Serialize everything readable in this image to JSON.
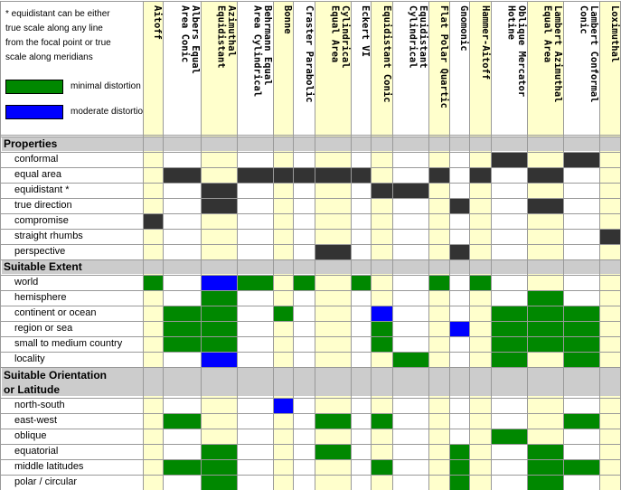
{
  "legend": {
    "note_lines": [
      "* equidistant can be either",
      "true scale along any line",
      "from the focal point or true",
      "scale along meridians"
    ],
    "items": [
      {
        "label": "minimal distortion",
        "color": "#008800"
      },
      {
        "label": "moderate distortion",
        "color": "#0000ff"
      }
    ]
  },
  "colors": {
    "property_mark": "#333333",
    "minimal": "#008800",
    "moderate": "#0000ff",
    "column_tint": "#ffffcc",
    "section_bg": "#cccccc"
  },
  "columns": [
    [
      "Aitoff"
    ],
    [
      "Albers Equal",
      "Area Conic"
    ],
    [
      "Azimuthal",
      "Equidistant"
    ],
    [
      "Behrmann Equal",
      "Area Cylindrical"
    ],
    [
      "Bonne"
    ],
    [
      "Craster Parabolic"
    ],
    [
      "Cylindrical",
      "Equal Area"
    ],
    [
      "Eckert VI"
    ],
    [
      "Equidistant Conic"
    ],
    [
      "Equidistant",
      "Cylindrical"
    ],
    [
      "Flat Polar Quartic"
    ],
    [
      "Gnomonic"
    ],
    [
      "Hammer-Aitoff"
    ],
    [
      "Oblique Mercator",
      "Hotine"
    ],
    [
      "Lambert Azimuthal",
      "Equal Area"
    ],
    [
      "Lambert Conformal",
      "Conic"
    ],
    [
      "Loximuthal"
    ]
  ],
  "sections": [
    {
      "title": "Properties",
      "rows": [
        {
          "label": "conformal",
          "marks": [
            0,
            0,
            0,
            0,
            0,
            0,
            0,
            0,
            0,
            0,
            0,
            0,
            0,
            1,
            0,
            1,
            0
          ]
        },
        {
          "label": "equal area",
          "marks": [
            0,
            1,
            0,
            1,
            1,
            1,
            1,
            1,
            0,
            0,
            1,
            0,
            1,
            0,
            1,
            0,
            0
          ]
        },
        {
          "label": "equidistant *",
          "marks": [
            0,
            0,
            1,
            0,
            0,
            0,
            0,
            0,
            1,
            1,
            0,
            0,
            0,
            0,
            0,
            0,
            0
          ]
        },
        {
          "label": "true direction",
          "marks": [
            0,
            0,
            1,
            0,
            0,
            0,
            0,
            0,
            0,
            0,
            0,
            1,
            0,
            0,
            1,
            0,
            0
          ]
        },
        {
          "label": "compromise",
          "marks": [
            1,
            0,
            0,
            0,
            0,
            0,
            0,
            0,
            0,
            0,
            0,
            0,
            0,
            0,
            0,
            0,
            0
          ]
        },
        {
          "label": "straight rhumbs",
          "marks": [
            0,
            0,
            0,
            0,
            0,
            0,
            0,
            0,
            0,
            0,
            0,
            0,
            0,
            0,
            0,
            0,
            1
          ]
        },
        {
          "label": "perspective",
          "marks": [
            0,
            0,
            0,
            0,
            0,
            0,
            1,
            0,
            0,
            0,
            0,
            1,
            0,
            0,
            0,
            0,
            0
          ]
        }
      ]
    },
    {
      "title": "Suitable Extent",
      "rows": [
        {
          "label": "world",
          "marks": [
            2,
            0,
            3,
            2,
            0,
            2,
            0,
            2,
            0,
            0,
            2,
            0,
            2,
            0,
            0,
            0,
            0
          ]
        },
        {
          "label": "hemisphere",
          "marks": [
            0,
            0,
            2,
            0,
            0,
            0,
            0,
            0,
            0,
            0,
            0,
            0,
            0,
            0,
            2,
            0,
            0
          ]
        },
        {
          "label": "continent or ocean",
          "marks": [
            0,
            2,
            2,
            0,
            2,
            0,
            0,
            0,
            3,
            0,
            0,
            0,
            0,
            2,
            2,
            2,
            0
          ]
        },
        {
          "label": "region or sea",
          "marks": [
            0,
            2,
            2,
            0,
            0,
            0,
            0,
            0,
            2,
            0,
            0,
            3,
            0,
            2,
            2,
            2,
            0
          ]
        },
        {
          "label": "small to medium country",
          "marks": [
            0,
            2,
            2,
            0,
            0,
            0,
            0,
            0,
            2,
            0,
            0,
            0,
            0,
            2,
            2,
            2,
            0
          ]
        },
        {
          "label": "locality",
          "marks": [
            0,
            0,
            3,
            0,
            0,
            0,
            0,
            0,
            0,
            2,
            0,
            0,
            0,
            2,
            0,
            2,
            0
          ]
        }
      ]
    },
    {
      "title": "Suitable Orientation or Latitude",
      "title_lines": [
        "Suitable Orientation",
        "or Latitude"
      ],
      "rows": [
        {
          "label": "north-south",
          "marks": [
            0,
            0,
            0,
            0,
            3,
            0,
            0,
            0,
            0,
            0,
            0,
            0,
            0,
            0,
            0,
            0,
            0
          ]
        },
        {
          "label": "east-west",
          "marks": [
            0,
            2,
            0,
            0,
            0,
            0,
            2,
            0,
            2,
            0,
            0,
            0,
            0,
            0,
            0,
            2,
            0
          ]
        },
        {
          "label": "oblique",
          "marks": [
            0,
            0,
            0,
            0,
            0,
            0,
            0,
            0,
            0,
            0,
            0,
            0,
            0,
            2,
            0,
            0,
            0
          ]
        },
        {
          "label": "equatorial",
          "marks": [
            0,
            0,
            2,
            0,
            0,
            0,
            2,
            0,
            0,
            0,
            0,
            2,
            0,
            0,
            2,
            0,
            0
          ]
        },
        {
          "label": "middle latitudes",
          "marks": [
            0,
            2,
            2,
            0,
            0,
            0,
            0,
            0,
            2,
            0,
            0,
            2,
            0,
            0,
            2,
            2,
            0
          ]
        },
        {
          "label": "polar / circular",
          "marks": [
            0,
            0,
            2,
            0,
            0,
            0,
            0,
            0,
            0,
            0,
            0,
            2,
            0,
            0,
            2,
            0,
            0
          ]
        }
      ]
    }
  ]
}
